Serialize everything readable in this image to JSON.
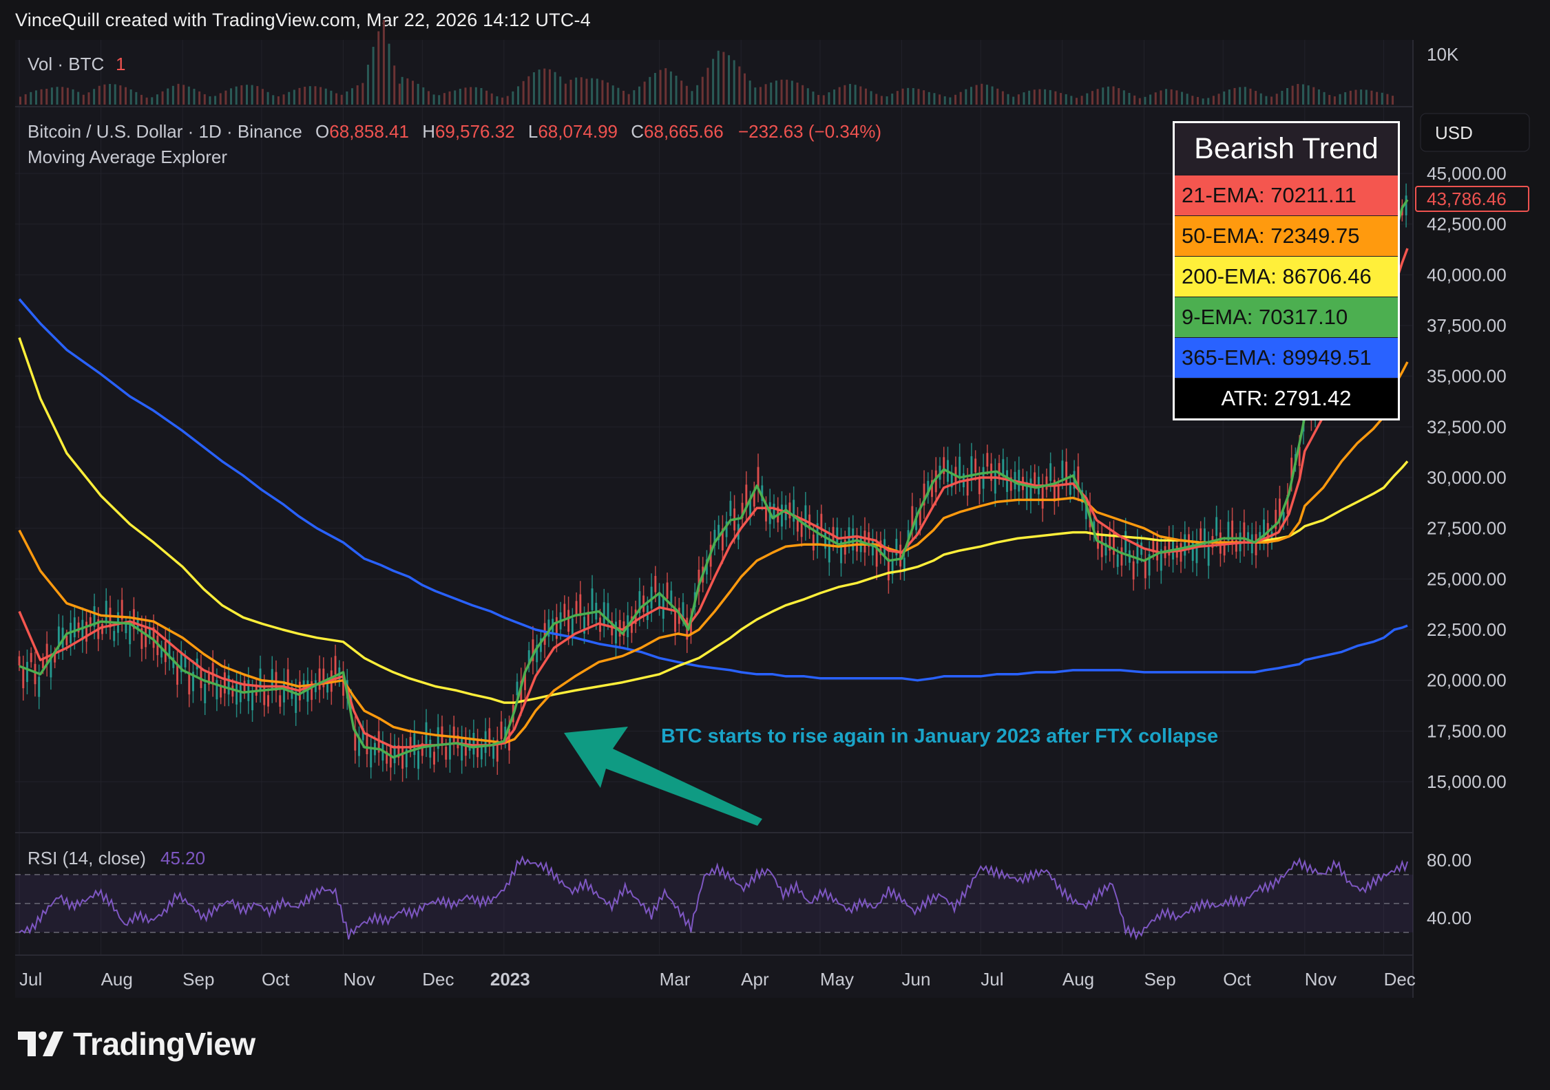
{
  "header": "VinceQuill created with TradingView.com, Mar 22, 2026 14:12 UTC-4",
  "volume_pane": {
    "label": "Vol · BTC",
    "value": "1",
    "axis_label": "10K"
  },
  "price_pane": {
    "symbol_line": "Bitcoin / U.S. Dollar · 1D · Binance",
    "o_label": "O",
    "o_value": "68,858.41",
    "h_label": "H",
    "h_value": "69,576.32",
    "l_label": "L",
    "l_value": "68,074.99",
    "c_label": "C",
    "c_value": "68,665.66",
    "change": "−232.63 (−0.34%)",
    "indicator": "Moving Average Explorer",
    "currency_button": "USD",
    "last_price_badge": "43,786.46",
    "annotation": "BTC starts to rise again in January 2023 after FTX collapse"
  },
  "trend_box": {
    "title": "Bearish Trend",
    "rows": [
      {
        "label": "21-EMA: 70211.11",
        "color": "#f4564f"
      },
      {
        "label": "50-EMA: 72349.75",
        "color": "#ff9a0e"
      },
      {
        "label": "200-EMA: 86706.46",
        "color": "#ffef3a"
      },
      {
        "label": "9-EMA: 70317.10",
        "color": "#4caf50"
      },
      {
        "label": "365-EMA: 89949.51",
        "color": "#2962ff"
      }
    ],
    "atr": "ATR: 2791.42"
  },
  "rsi_pane": {
    "label": "RSI (14, close)",
    "value": "45.20"
  },
  "branding": "TradingView",
  "colors": {
    "background": "#141417",
    "ema9": "#4caf50",
    "ema21": "#f4564f",
    "ema50": "#ff9a0e",
    "ema200": "#ffef3a",
    "ema365": "#2962ff",
    "candle_up": "#26a69a",
    "candle_down": "#ef5350",
    "rsi": "#7e57c2",
    "annotation": "#1aa4c8",
    "arrow": "#0f9b83"
  },
  "chart_data": {
    "type": "line",
    "title": "Bitcoin / U.S. Dollar · 1D · Binance",
    "y_ticks": [
      "45,000.00",
      "42,500.00",
      "40,000.00",
      "37,500.00",
      "35,000.00",
      "32,500.00",
      "30,000.00",
      "27,500.00",
      "25,000.00",
      "22,500.00",
      "20,000.00",
      "17,500.00",
      "15,000.00"
    ],
    "ylim": [
      12000,
      47000
    ],
    "x_ticks": [
      "Jul",
      "Aug",
      "Sep",
      "Oct",
      "Nov",
      "Dec",
      "2023",
      "Mar",
      "Apr",
      "May",
      "Jun",
      "Jul",
      "Aug",
      "Sep",
      "Oct",
      "Nov",
      "Dec"
    ],
    "x_tick_index": [
      0,
      31,
      62,
      92,
      123,
      153,
      184,
      243,
      274,
      304,
      335,
      365,
      396,
      427,
      457,
      488,
      518
    ],
    "x": [
      0,
      8,
      18,
      31,
      42,
      51,
      62,
      70,
      77,
      85,
      92,
      100,
      106,
      113,
      123,
      127,
      131,
      137,
      142,
      148,
      153,
      158,
      166,
      172,
      179,
      184,
      188,
      192,
      196,
      203,
      211,
      220,
      229,
      236,
      243,
      250,
      254,
      258,
      264,
      270,
      274,
      280,
      286,
      291,
      298,
      304,
      311,
      318,
      325,
      330,
      335,
      341,
      347,
      351,
      357,
      365,
      371,
      379,
      386,
      393,
      400,
      405,
      409,
      418,
      427,
      433,
      441,
      448,
      457,
      465,
      469,
      473,
      478,
      482,
      486,
      488,
      495,
      502,
      508,
      514,
      518,
      520,
      522,
      525,
      527
    ],
    "series": [
      {
        "name": "9-EMA",
        "values": [
          20700,
          20300,
          22300,
          22900,
          22800,
          22000,
          20500,
          20000,
          19700,
          19400,
          19500,
          19600,
          19300,
          19800,
          20400,
          17600,
          16700,
          16600,
          16200,
          16500,
          16700,
          16800,
          16900,
          16700,
          16800,
          17000,
          18500,
          20400,
          21500,
          22800,
          23200,
          23400,
          22300,
          23600,
          24300,
          23400,
          22500,
          24700,
          26800,
          27900,
          28000,
          29600,
          28000,
          28400,
          27700,
          27200,
          26700,
          26900,
          26600,
          25900,
          26000,
          28200,
          29800,
          30400,
          30000,
          30200,
          30300,
          29700,
          29500,
          29700,
          30100,
          28700,
          26900,
          26300,
          25900,
          26300,
          26500,
          26700,
          27000,
          27000,
          26800,
          27200,
          27800,
          29200,
          31700,
          33000,
          34700,
          36200,
          37100,
          37700,
          38300,
          40100,
          41900,
          43300,
          43700
        ]
      },
      {
        "name": "21-EMA",
        "values": [
          23400,
          21000,
          21600,
          22600,
          22900,
          22500,
          21300,
          20500,
          20100,
          19800,
          19700,
          19700,
          19500,
          19800,
          20200,
          18500,
          17400,
          17000,
          16700,
          16700,
          16800,
          16800,
          16900,
          16800,
          16800,
          16900,
          17600,
          18900,
          20200,
          21600,
          22300,
          22800,
          22500,
          23100,
          23600,
          23400,
          22700,
          23400,
          25100,
          26700,
          27500,
          28500,
          28500,
          28300,
          27900,
          27500,
          27000,
          27100,
          26900,
          26400,
          26300,
          27200,
          28600,
          29500,
          29800,
          30000,
          30000,
          29800,
          29600,
          29600,
          29700,
          29000,
          27900,
          27100,
          26500,
          26300,
          26400,
          26600,
          26700,
          26800,
          26800,
          27000,
          27300,
          28200,
          29900,
          31300,
          33000,
          34700,
          35800,
          36600,
          37400,
          38400,
          39400,
          40600,
          41300
        ]
      },
      {
        "name": "50-EMA",
        "values": [
          27400,
          25400,
          23800,
          23200,
          23100,
          22900,
          22100,
          21300,
          20700,
          20300,
          20000,
          19900,
          19700,
          19800,
          20000,
          19200,
          18500,
          18100,
          17700,
          17500,
          17400,
          17300,
          17200,
          17100,
          17000,
          16900,
          17100,
          17700,
          18500,
          19500,
          20200,
          20900,
          21200,
          21600,
          22100,
          22300,
          22200,
          22500,
          23400,
          24400,
          25100,
          25900,
          26300,
          26600,
          26700,
          26700,
          26600,
          26700,
          26700,
          26500,
          26300,
          26700,
          27400,
          28000,
          28300,
          28600,
          28800,
          28900,
          28900,
          28900,
          29000,
          28800,
          28300,
          27900,
          27500,
          27100,
          26900,
          26800,
          26800,
          26800,
          26800,
          26800,
          26900,
          27100,
          27800,
          28600,
          29500,
          30800,
          31700,
          32400,
          33000,
          33700,
          34500,
          35200,
          35700
        ]
      },
      {
        "name": "200-EMA",
        "values": [
          36900,
          33900,
          31200,
          29100,
          27700,
          26800,
          25600,
          24500,
          23700,
          23100,
          22800,
          22500,
          22300,
          22100,
          21900,
          21500,
          21100,
          20700,
          20400,
          20100,
          19900,
          19700,
          19500,
          19300,
          19100,
          18900,
          18900,
          19000,
          19100,
          19300,
          19500,
          19700,
          19900,
          20100,
          20300,
          20700,
          20900,
          21100,
          21600,
          22100,
          22500,
          23000,
          23400,
          23700,
          24000,
          24300,
          24600,
          24800,
          25100,
          25300,
          25400,
          25600,
          25900,
          26200,
          26400,
          26600,
          26800,
          27000,
          27100,
          27200,
          27300,
          27300,
          27200,
          27100,
          27000,
          26900,
          26900,
          26800,
          26800,
          26800,
          26800,
          26900,
          27000,
          27100,
          27400,
          27600,
          27900,
          28400,
          28800,
          29200,
          29500,
          29800,
          30100,
          30500,
          30800
        ]
      },
      {
        "name": "365-EMA",
        "values": [
          38800,
          37600,
          36300,
          35100,
          34000,
          33300,
          32300,
          31500,
          30800,
          30100,
          29400,
          28700,
          28100,
          27500,
          26800,
          26400,
          26000,
          25700,
          25400,
          25100,
          24700,
          24400,
          24000,
          23700,
          23400,
          23100,
          22900,
          22700,
          22500,
          22300,
          22100,
          21800,
          21600,
          21400,
          21100,
          20900,
          20800,
          20700,
          20600,
          20500,
          20400,
          20300,
          20300,
          20200,
          20200,
          20100,
          20100,
          20100,
          20100,
          20100,
          20100,
          20000,
          20100,
          20200,
          20200,
          20200,
          20300,
          20300,
          20400,
          20400,
          20500,
          20500,
          20500,
          20500,
          20400,
          20400,
          20400,
          20400,
          20400,
          20400,
          20400,
          20500,
          20600,
          20700,
          20800,
          21000,
          21200,
          21400,
          21700,
          21900,
          22100,
          22300,
          22500,
          22600,
          22700
        ]
      }
    ],
    "rsi": {
      "name": "RSI (14, close)",
      "levels": [
        70,
        50,
        30
      ],
      "axis_ticks": [
        "80.00",
        "40.00"
      ],
      "x": [
        0,
        5,
        10,
        15,
        20,
        25,
        30,
        35,
        40,
        45,
        50,
        55,
        60,
        65,
        70,
        75,
        80,
        85,
        90,
        95,
        100,
        105,
        110,
        115,
        120,
        125,
        130,
        135,
        140,
        145,
        150,
        155,
        160,
        165,
        170,
        175,
        180,
        185,
        190,
        195,
        200,
        205,
        210,
        215,
        220,
        225,
        230,
        235,
        240,
        245,
        250,
        255,
        260,
        265,
        270,
        275,
        280,
        285,
        290,
        295,
        300,
        305,
        310,
        315,
        320,
        325,
        330,
        335,
        340,
        345,
        350,
        355,
        360,
        365,
        370,
        375,
        380,
        385,
        390,
        395,
        400,
        405,
        410,
        415,
        420,
        425,
        430,
        435,
        440,
        445,
        450,
        455,
        460,
        465,
        470,
        475,
        480,
        485,
        490,
        495,
        500,
        505,
        510,
        515,
        520,
        525
      ],
      "values": [
        30,
        33,
        45,
        55,
        48,
        52,
        58,
        50,
        35,
        42,
        38,
        44,
        56,
        49,
        40,
        47,
        52,
        45,
        50,
        44,
        51,
        47,
        54,
        60,
        58,
        28,
        36,
        40,
        38,
        45,
        43,
        50,
        52,
        49,
        55,
        51,
        53,
        62,
        80,
        78,
        75,
        66,
        58,
        64,
        55,
        48,
        61,
        52,
        42,
        58,
        46,
        33,
        69,
        74,
        68,
        60,
        70,
        73,
        56,
        62,
        50,
        58,
        52,
        45,
        51,
        47,
        59,
        53,
        44,
        52,
        56,
        47,
        60,
        75,
        72,
        69,
        66,
        70,
        73,
        60,
        52,
        48,
        57,
        64,
        32,
        28,
        38,
        44,
        40,
        46,
        50,
        48,
        52,
        51,
        60,
        62,
        69,
        79,
        74,
        70,
        78,
        64,
        59,
        66,
        71,
        76
      ]
    },
    "volume": {
      "x": [
        0,
        10,
        20,
        30,
        40,
        50,
        60,
        70,
        80,
        90,
        100,
        110,
        120,
        130,
        138,
        145,
        155,
        165,
        175,
        185,
        195,
        205,
        215,
        225,
        235,
        245,
        255,
        265,
        275,
        285,
        295,
        305,
        315,
        325,
        335,
        345,
        355,
        365,
        375,
        385,
        395,
        405,
        415,
        425,
        435,
        445,
        455,
        465,
        475,
        485,
        495,
        505,
        515,
        522
      ],
      "values": [
        8,
        7,
        9,
        10,
        8,
        6,
        9,
        7,
        8,
        9,
        7,
        8,
        9,
        10,
        40,
        12,
        9,
        7,
        8,
        6,
        14,
        22,
        12,
        10,
        11,
        16,
        13,
        24,
        18,
        12,
        10,
        8,
        9,
        7,
        8,
        6,
        7,
        9,
        8,
        7,
        6,
        7,
        8,
        6,
        7,
        5,
        6,
        8,
        7,
        9,
        8,
        7,
        6,
        7
      ]
    }
  }
}
